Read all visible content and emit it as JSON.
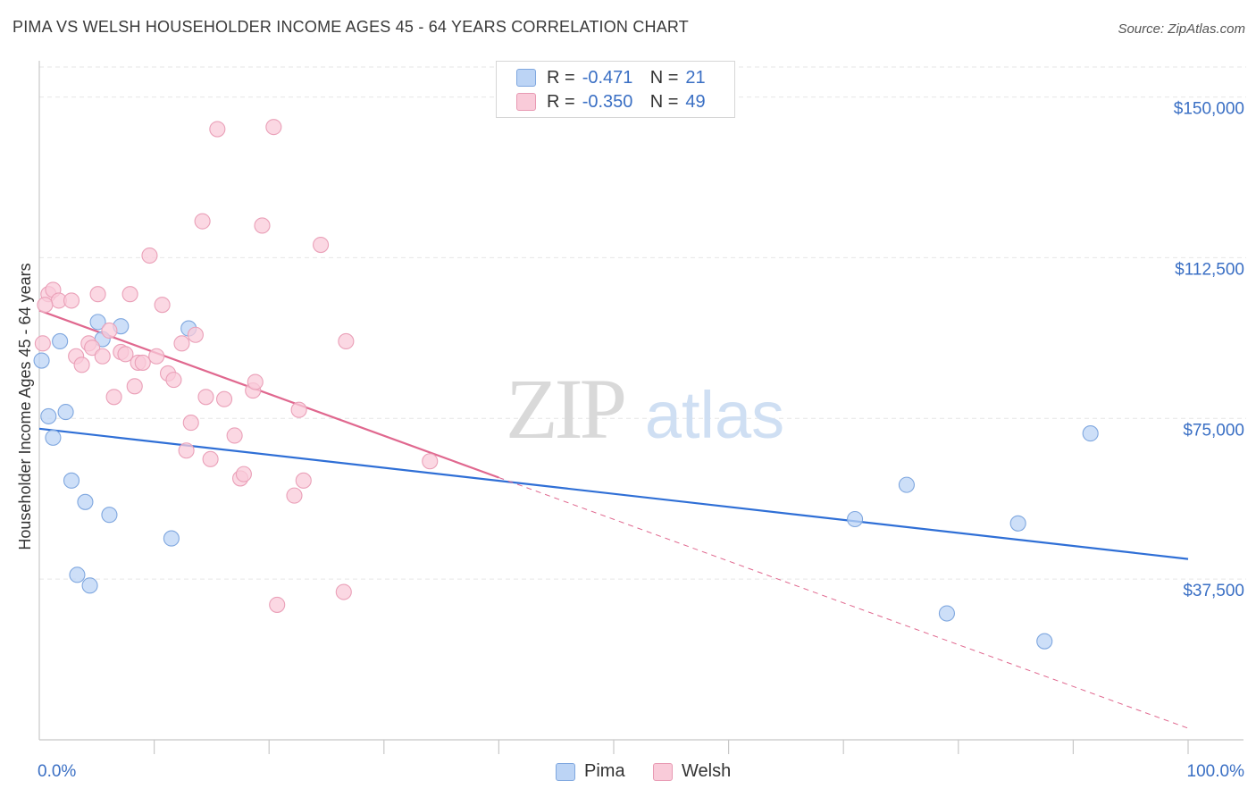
{
  "title": "PIMA VS WELSH HOUSEHOLDER INCOME AGES 45 - 64 YEARS CORRELATION CHART",
  "source": "Source: ZipAtlas.com",
  "watermark": {
    "zip": "ZIP",
    "atlas": "atlas"
  },
  "legend": {
    "pima": {
      "r_label": "R =",
      "r_value": "-0.471",
      "n_label": "N =",
      "n_value": "21"
    },
    "welsh": {
      "r_label": "R =",
      "r_value": "-0.350",
      "n_label": "N =",
      "n_value": "49"
    }
  },
  "bottom_legend": {
    "pima": "Pima",
    "welsh": "Welsh"
  },
  "colors": {
    "pima": "#2f6fd6",
    "welsh": "#e0688f",
    "pima_fill": "#bcd4f5",
    "welsh_fill": "#f9cbd9",
    "axis_label": "#3a6fc4"
  },
  "chart_data": {
    "type": "scatter",
    "xlabel": "",
    "ylabel": "Householder Income Ages 45 - 64 years",
    "xlim": [
      0,
      100
    ],
    "ylim": [
      0,
      157000
    ],
    "x_tick_labels": [
      "0.0%",
      "100.0%"
    ],
    "y_ticks": [
      37500,
      75000,
      112500,
      150000
    ],
    "y_tick_labels": [
      "$37,500",
      "$75,000",
      "$112,500",
      "$150,000"
    ],
    "grid": true,
    "series": [
      {
        "name": "Pima",
        "points": [
          [
            0.2,
            88500
          ],
          [
            1.8,
            93000
          ],
          [
            0.8,
            75500
          ],
          [
            1.2,
            70500
          ],
          [
            2.3,
            76500
          ],
          [
            2.8,
            60500
          ],
          [
            4.0,
            55500
          ],
          [
            5.1,
            97500
          ],
          [
            5.5,
            93500
          ],
          [
            6.1,
            52500
          ],
          [
            7.1,
            96500
          ],
          [
            11.5,
            47000
          ],
          [
            13.0,
            96000
          ],
          [
            3.3,
            38500
          ],
          [
            4.4,
            36000
          ],
          [
            71.0,
            51500
          ],
          [
            75.5,
            59500
          ],
          [
            85.2,
            50500
          ],
          [
            79.0,
            29500
          ],
          [
            87.5,
            23000
          ],
          [
            91.5,
            71500
          ]
        ],
        "trend": {
          "x": [
            0,
            100
          ],
          "y": [
            72600,
            42200
          ]
        }
      },
      {
        "name": "Welsh",
        "points": [
          [
            0.3,
            92500
          ],
          [
            0.8,
            104000
          ],
          [
            1.2,
            105000
          ],
          [
            1.7,
            102500
          ],
          [
            2.8,
            102500
          ],
          [
            3.2,
            89500
          ],
          [
            3.7,
            87500
          ],
          [
            4.3,
            92500
          ],
          [
            4.6,
            91500
          ],
          [
            5.1,
            104000
          ],
          [
            5.5,
            89500
          ],
          [
            6.1,
            95500
          ],
          [
            6.5,
            80000
          ],
          [
            7.1,
            90500
          ],
          [
            7.5,
            90000
          ],
          [
            7.9,
            104000
          ],
          [
            8.3,
            82500
          ],
          [
            8.6,
            88000
          ],
          [
            9.0,
            88000
          ],
          [
            9.6,
            113000
          ],
          [
            10.2,
            89500
          ],
          [
            10.7,
            101500
          ],
          [
            11.2,
            85500
          ],
          [
            11.7,
            84000
          ],
          [
            12.4,
            92500
          ],
          [
            12.8,
            67500
          ],
          [
            13.2,
            74000
          ],
          [
            13.6,
            94500
          ],
          [
            14.2,
            121000
          ],
          [
            14.5,
            80000
          ],
          [
            14.9,
            65500
          ],
          [
            15.5,
            142500
          ],
          [
            16.1,
            79500
          ],
          [
            17.0,
            71000
          ],
          [
            17.5,
            61000
          ],
          [
            17.8,
            62000
          ],
          [
            18.6,
            81500
          ],
          [
            18.8,
            83500
          ],
          [
            19.4,
            120000
          ],
          [
            20.4,
            143000
          ],
          [
            20.7,
            31500
          ],
          [
            22.2,
            57000
          ],
          [
            22.6,
            77000
          ],
          [
            23.0,
            60500
          ],
          [
            24.5,
            115500
          ],
          [
            26.7,
            93000
          ],
          [
            26.5,
            34500
          ],
          [
            34.0,
            65000
          ],
          [
            0.5,
            101500
          ]
        ],
        "trend": {
          "x": [
            0,
            40
          ],
          "y": [
            100200,
            61200
          ]
        },
        "trend_extension": {
          "x": [
            40,
            100
          ],
          "y": [
            61200,
            2700
          ]
        }
      }
    ]
  }
}
